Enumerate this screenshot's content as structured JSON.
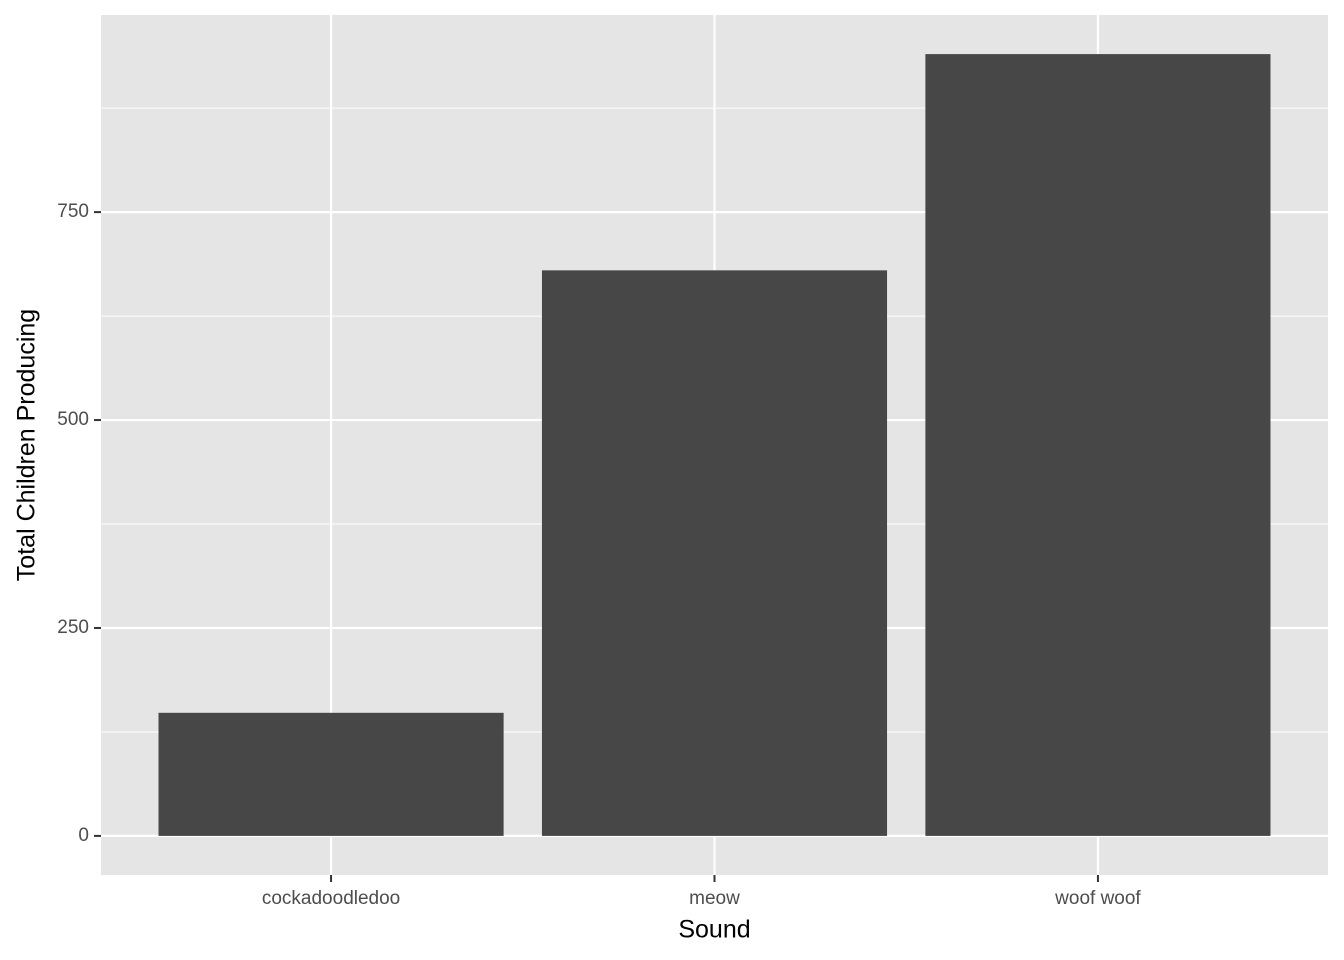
{
  "chart_data": {
    "type": "bar",
    "x_label": "Sound",
    "y_label": "Total Children Producing",
    "categories": [
      "cockadoodledoo",
      "meow",
      "woof woof"
    ],
    "values": [
      148,
      680,
      940
    ],
    "color": "#474747",
    "ylim": [
      -47,
      987
    ],
    "yticks": [
      0,
      250,
      500,
      750
    ],
    "grid": true
  }
}
